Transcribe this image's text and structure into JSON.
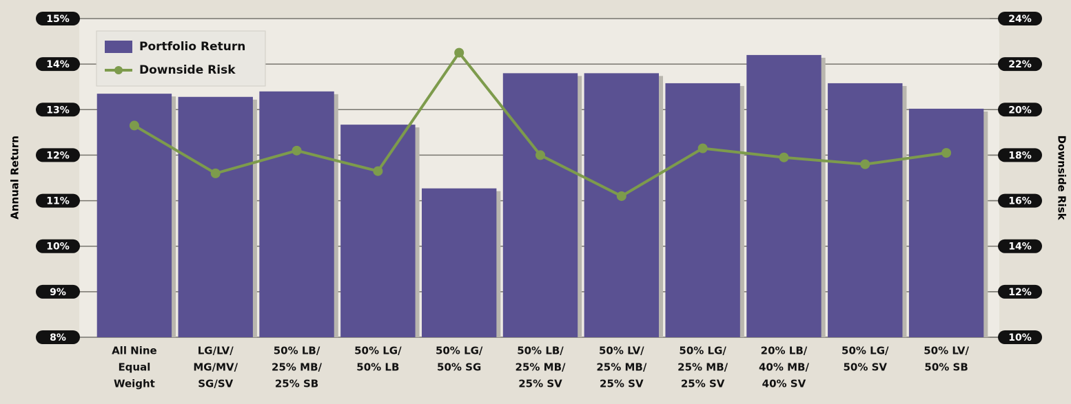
{
  "chart_data": {
    "type": "bar-line",
    "y_label": "Annual Return",
    "y2_label": "Downside Risk",
    "categories": [
      [
        "All Nine",
        "Equal",
        "Weight"
      ],
      [
        "LG/LV/",
        "MG/MV/",
        "SG/SV"
      ],
      [
        "50% LB/",
        "25% MB/",
        "25% SB"
      ],
      [
        "50% LG/",
        "50% LB"
      ],
      [
        "50% LG/",
        "50% SG"
      ],
      [
        "50% LB/",
        "25% MB/",
        "25% SV"
      ],
      [
        "50% LV/",
        "25% MB/",
        "25% SV"
      ],
      [
        "50% LG/",
        "25% MB/",
        "25% SV"
      ],
      [
        "20% LB/",
        "40% MB/",
        "40% SV"
      ],
      [
        "50% LG/",
        "50% SV"
      ],
      [
        "50% LV/",
        "50% SB"
      ]
    ],
    "series": [
      {
        "name": "Portfolio Return",
        "type": "bar",
        "color": "#5a5192",
        "values": [
          13.35,
          13.28,
          13.4,
          12.67,
          11.27,
          13.8,
          13.8,
          13.58,
          14.2,
          13.58,
          13.02
        ]
      },
      {
        "name": "Downside Risk",
        "type": "line",
        "axis": "y2",
        "color": "#7d9b4c",
        "values": [
          19.3,
          17.2,
          18.2,
          17.3,
          22.5,
          18.0,
          16.2,
          18.3,
          17.9,
          17.6,
          18.1
        ]
      }
    ],
    "ylim": [
      8,
      15
    ],
    "yticks": [
      {
        "value": 8,
        "label": "8%"
      },
      {
        "value": 9,
        "label": "9%"
      },
      {
        "value": 10,
        "label": "10%"
      },
      {
        "value": 11,
        "label": "11%"
      },
      {
        "value": 12,
        "label": "12%"
      },
      {
        "value": 13,
        "label": "13%"
      },
      {
        "value": 14,
        "label": "14%"
      },
      {
        "value": 15,
        "label": "15%"
      }
    ],
    "y2lim": [
      10,
      24
    ],
    "y2ticks": [
      {
        "value": 10,
        "label": "10%"
      },
      {
        "value": 12,
        "label": "12%"
      },
      {
        "value": 14,
        "label": "14%"
      },
      {
        "value": 16,
        "label": "16%"
      },
      {
        "value": 18,
        "label": "18%"
      },
      {
        "value": 20,
        "label": "20%"
      },
      {
        "value": 22,
        "label": "22%"
      },
      {
        "value": 24,
        "label": "24%"
      }
    ],
    "grid": true,
    "legend": "top-left"
  }
}
